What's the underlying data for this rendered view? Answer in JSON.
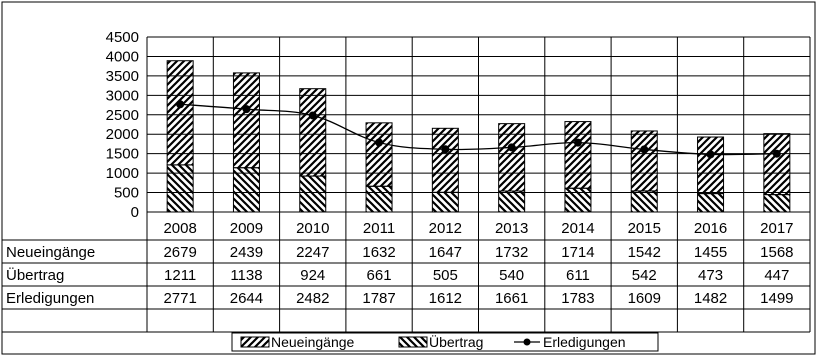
{
  "chart_data": {
    "type": "bar",
    "subtype": "stacked bar with line and data table",
    "categories": [
      "2008",
      "2009",
      "2010",
      "2011",
      "2012",
      "2013",
      "2014",
      "2015",
      "2016",
      "2017"
    ],
    "series": [
      {
        "name": "Neueingänge",
        "kind": "bar",
        "fill": "diagonal-up hatch",
        "values": [
          2679,
          2439,
          2247,
          1632,
          1647,
          1732,
          1714,
          1542,
          1455,
          1568
        ]
      },
      {
        "name": "Übertrag",
        "kind": "bar",
        "fill": "diagonal-down hatch",
        "values": [
          1211,
          1138,
          924,
          661,
          505,
          540,
          611,
          542,
          473,
          447
        ]
      },
      {
        "name": "Erledigungen",
        "kind": "line",
        "marker": "dot",
        "values": [
          2771,
          2644,
          2482,
          1787,
          1612,
          1661,
          1783,
          1609,
          1482,
          1499
        ]
      }
    ],
    "y_ticks": [
      "4500",
      "4000",
      "3500",
      "3000",
      "2500",
      "2000",
      "1500",
      "1000",
      "500",
      "0"
    ],
    "ylim": [
      0,
      4500
    ],
    "grid": true,
    "legend_position": "bottom",
    "data_table": true,
    "colors": {
      "ink": "#000000",
      "bar_fill": "#ffffff",
      "background": "#ffffff"
    }
  }
}
